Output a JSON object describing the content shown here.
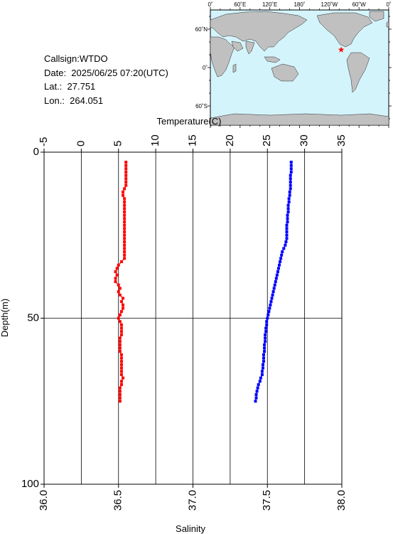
{
  "info": {
    "callsign_line": "Callsign:WTDO",
    "date_line": "Date:  2025/06/25 07:20(UTC)",
    "lat_line": "Lat.:  27.751",
    "lon_line": "Lon.:  264.051"
  },
  "map": {
    "lon_ticks": [
      "0˚",
      "60˚E",
      "120˚E",
      "180˚",
      "120˚W",
      "60˚W",
      "0˚"
    ],
    "lat_ticks": [
      "60˚N",
      "0˚",
      "60˚S"
    ],
    "ocean_color": "#d4f4fc",
    "land_color": "#c0c0c0",
    "marker": {
      "symbol": "star",
      "lat": 27.751,
      "lon": 264.051,
      "color": "#ff0000"
    }
  },
  "chart_data": {
    "type": "scatter",
    "ylabel": "Depth(m)",
    "ylim": [
      0,
      100
    ],
    "y_ticks": [
      "0",
      "50",
      "100"
    ],
    "top_axis": {
      "label": "Temperature(C)",
      "range": [
        -5,
        35
      ],
      "ticks": [
        "-5",
        "0",
        "5",
        "10",
        "15",
        "20",
        "25",
        "30",
        "35"
      ]
    },
    "bottom_axis": {
      "label": "Salinity",
      "range": [
        36.0,
        38.0
      ],
      "ticks": [
        "36.0",
        "36.5",
        "37.0",
        "37.5",
        "38.0"
      ]
    },
    "grid": true,
    "series": [
      {
        "axis": "bottom",
        "color": "#ff0000",
        "depth": [
          3,
          4,
          5,
          6,
          7,
          8,
          9,
          10,
          11,
          12,
          13,
          14,
          15,
          16,
          17,
          18,
          19,
          20,
          21,
          22,
          23,
          24,
          25,
          26,
          27,
          28,
          29,
          30,
          31,
          32,
          33,
          34,
          35,
          36,
          37,
          38,
          39,
          40,
          41,
          42,
          43,
          44,
          45,
          46,
          47,
          48,
          49,
          50,
          51,
          52,
          53,
          54,
          55,
          56,
          57,
          58,
          59,
          60,
          61,
          62,
          63,
          64,
          65,
          66,
          67,
          68,
          69,
          70,
          71,
          72,
          73,
          74,
          75
        ],
        "values": [
          36.55,
          36.55,
          36.55,
          36.55,
          36.55,
          36.55,
          36.55,
          36.55,
          36.54,
          36.53,
          36.53,
          36.54,
          36.54,
          36.54,
          36.54,
          36.54,
          36.54,
          36.54,
          36.54,
          36.54,
          36.54,
          36.54,
          36.54,
          36.54,
          36.54,
          36.54,
          36.54,
          36.54,
          36.54,
          36.54,
          36.52,
          36.5,
          36.49,
          36.48,
          36.49,
          36.48,
          36.48,
          36.5,
          36.51,
          36.5,
          36.51,
          36.53,
          36.52,
          36.53,
          36.53,
          36.52,
          36.51,
          36.5,
          36.51,
          36.52,
          36.52,
          36.52,
          36.52,
          36.51,
          36.51,
          36.51,
          36.51,
          36.51,
          36.52,
          36.52,
          36.52,
          36.52,
          36.52,
          36.52,
          36.52,
          36.53,
          36.52,
          36.52,
          36.51,
          36.51,
          36.51,
          36.51,
          36.51
        ]
      },
      {
        "axis": "top",
        "color": "#0000ff",
        "depth": [
          3,
          4,
          5,
          6,
          7,
          8,
          9,
          10,
          11,
          12,
          13,
          14,
          15,
          16,
          17,
          18,
          19,
          20,
          21,
          22,
          23,
          24,
          25,
          26,
          27,
          28,
          29,
          30,
          31,
          32,
          33,
          34,
          35,
          36,
          37,
          38,
          39,
          40,
          41,
          42,
          43,
          44,
          45,
          46,
          47,
          48,
          49,
          50,
          51,
          52,
          53,
          54,
          55,
          56,
          57,
          58,
          59,
          60,
          61,
          62,
          63,
          64,
          65,
          66,
          67,
          68,
          69,
          70,
          71,
          72,
          73,
          74,
          75
        ],
        "values": [
          28.2,
          28.2,
          28.2,
          28.2,
          28.1,
          28.1,
          28.1,
          28.1,
          28.1,
          28.0,
          28.0,
          27.9,
          27.9,
          27.8,
          27.8,
          27.8,
          27.7,
          27.7,
          27.7,
          27.6,
          27.6,
          27.6,
          27.6,
          27.6,
          27.5,
          27.4,
          27.2,
          27.0,
          26.9,
          26.8,
          26.7,
          26.6,
          26.5,
          26.4,
          26.3,
          26.2,
          26.1,
          26.0,
          25.9,
          25.8,
          25.7,
          25.6,
          25.5,
          25.4,
          25.3,
          25.2,
          25.1,
          25.0,
          24.9,
          24.9,
          24.8,
          24.8,
          24.7,
          24.7,
          24.7,
          24.6,
          24.6,
          24.6,
          24.5,
          24.5,
          24.5,
          24.4,
          24.4,
          24.3,
          24.3,
          24.1,
          24.0,
          23.8,
          23.7,
          23.6,
          23.5,
          23.5,
          23.4
        ]
      }
    ]
  }
}
